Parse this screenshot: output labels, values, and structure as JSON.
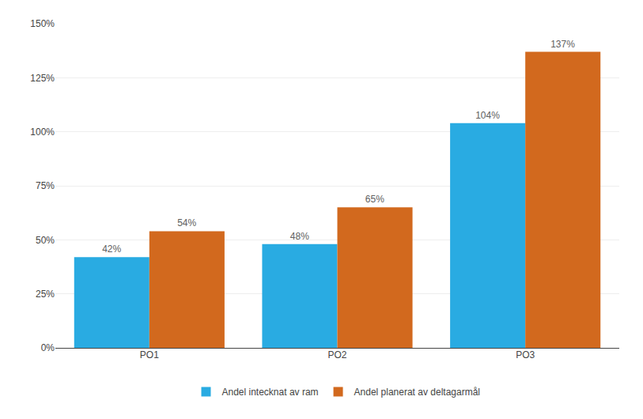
{
  "chart_data": {
    "type": "bar",
    "categories": [
      "PO1",
      "PO2",
      "PO3"
    ],
    "series": [
      {
        "name": "Andel intecknat av ram",
        "color": "#29ABE2",
        "values": [
          42,
          48,
          104
        ],
        "value_labels": [
          "42%",
          "48%",
          "104%"
        ]
      },
      {
        "name": "Andel planerat av deltagarmål",
        "color": "#D2691E",
        "values": [
          54,
          65,
          137
        ],
        "value_labels": [
          "54%",
          "65%",
          "137%"
        ]
      }
    ],
    "ylim": [
      0,
      150
    ],
    "yticks": [
      {
        "value": 0,
        "label": "0%"
      },
      {
        "value": 25,
        "label": "25%"
      },
      {
        "value": 50,
        "label": "50%"
      },
      {
        "value": 75,
        "label": "75%"
      },
      {
        "value": 100,
        "label": "100%"
      },
      {
        "value": 125,
        "label": "125%"
      },
      {
        "value": 150,
        "label": "150%"
      }
    ],
    "grid": true,
    "legend": "bottom",
    "data_labels": true
  }
}
